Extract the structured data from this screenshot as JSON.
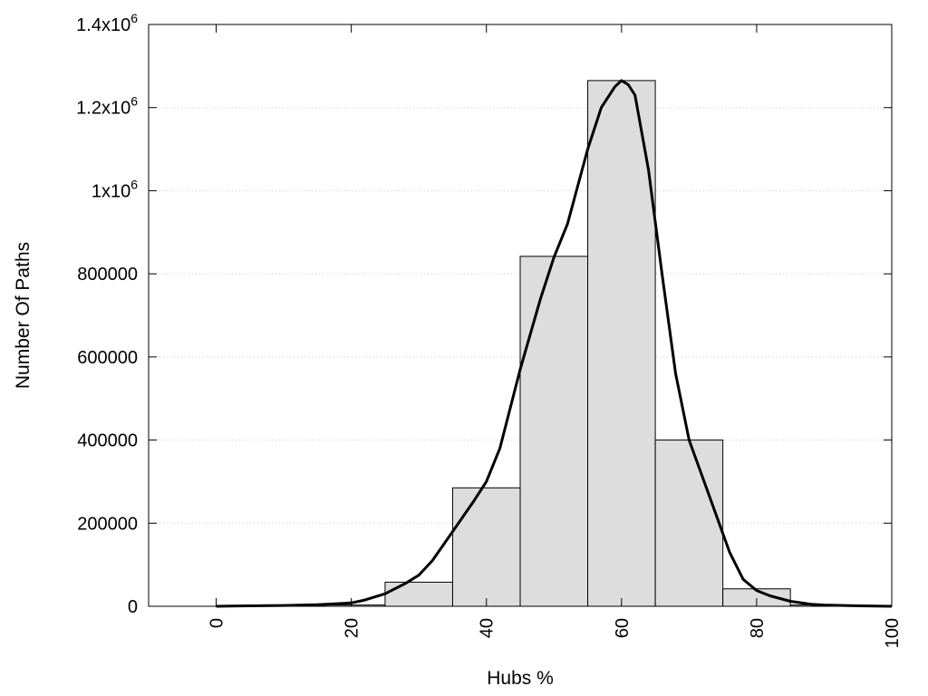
{
  "chart_data": {
    "type": "bar",
    "xlabel": "Hubs %",
    "ylabel": "Number Of Paths",
    "xlim": [
      -10,
      100
    ],
    "ylim": [
      0,
      1400000
    ],
    "grid": true,
    "x_ticks": [
      {
        "value": 0,
        "label": "0"
      },
      {
        "value": 20,
        "label": "20"
      },
      {
        "value": 40,
        "label": "40"
      },
      {
        "value": 60,
        "label": "60"
      },
      {
        "value": 80,
        "label": "80"
      },
      {
        "value": 100,
        "label": "100"
      }
    ],
    "y_ticks": [
      {
        "value": 0,
        "base": "0",
        "exp": ""
      },
      {
        "value": 200000,
        "base": "200000",
        "exp": ""
      },
      {
        "value": 400000,
        "base": "400000",
        "exp": ""
      },
      {
        "value": 600000,
        "base": "600000",
        "exp": ""
      },
      {
        "value": 800000,
        "base": "800000",
        "exp": ""
      },
      {
        "value": 1000000,
        "base": "1x10",
        "exp": "6"
      },
      {
        "value": 1200000,
        "base": "1.2x10",
        "exp": "6"
      },
      {
        "value": 1400000,
        "base": "1.4x10",
        "exp": "6"
      }
    ],
    "bin_width": 10,
    "bins": [
      {
        "center": 0,
        "value": 0
      },
      {
        "center": 10,
        "value": 0
      },
      {
        "center": 20,
        "value": 3000
      },
      {
        "center": 30,
        "value": 58000
      },
      {
        "center": 40,
        "value": 285000
      },
      {
        "center": 50,
        "value": 842000
      },
      {
        "center": 60,
        "value": 1265000
      },
      {
        "center": 70,
        "value": 400000
      },
      {
        "center": 80,
        "value": 42000
      },
      {
        "center": 90,
        "value": 3000
      }
    ],
    "curve": {
      "x": [
        0,
        5,
        10,
        15,
        20,
        22,
        25,
        28,
        30,
        32,
        35,
        38,
        40,
        42,
        45,
        48,
        50,
        52,
        55,
        57,
        59,
        60,
        61,
        62,
        64,
        66,
        68,
        70,
        72,
        74,
        76,
        78,
        80,
        82,
        85,
        88,
        90,
        95,
        100
      ],
      "y": [
        0,
        1000,
        2000,
        4000,
        8000,
        15000,
        30000,
        55000,
        75000,
        110000,
        180000,
        250000,
        300000,
        380000,
        570000,
        740000,
        840000,
        920000,
        1100000,
        1200000,
        1250000,
        1265000,
        1255000,
        1230000,
        1050000,
        800000,
        560000,
        400000,
        310000,
        220000,
        130000,
        65000,
        38000,
        25000,
        12000,
        5000,
        3000,
        1000,
        0
      ]
    }
  }
}
